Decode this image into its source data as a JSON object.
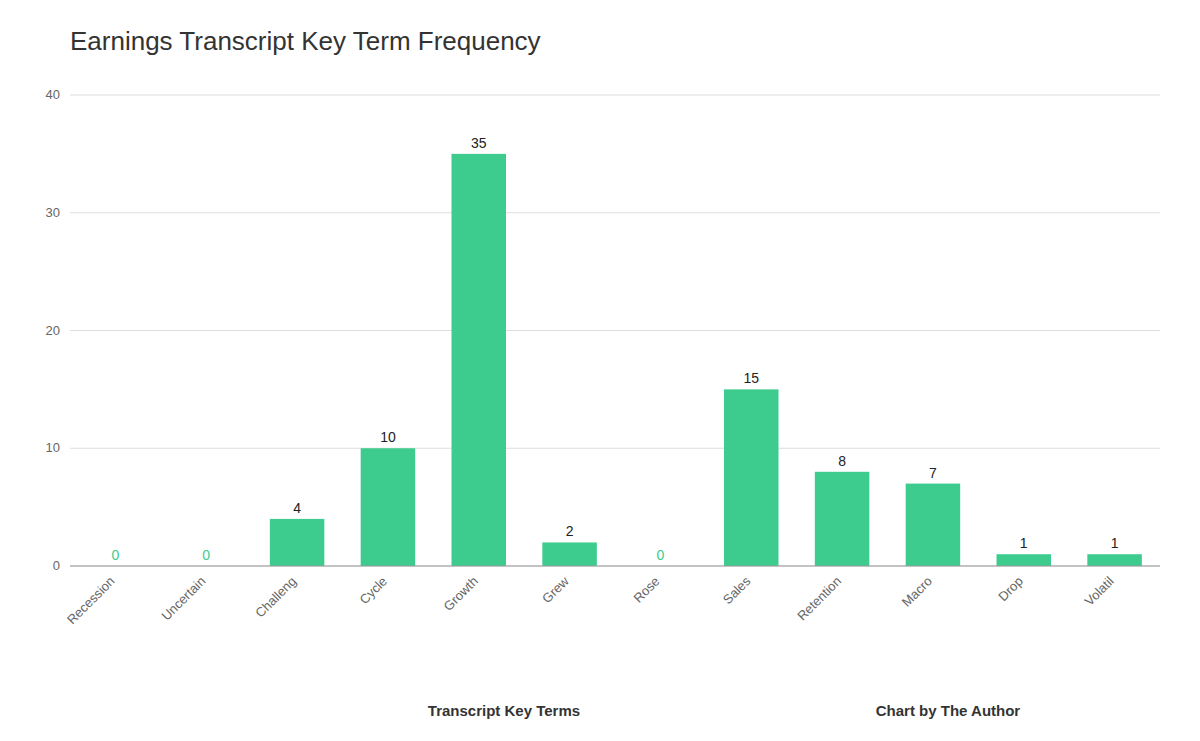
{
  "chart_data": {
    "type": "bar",
    "title": "Earnings Transcript Key Term Frequency",
    "xlabel": "Transcript Key Terms",
    "annotations": [
      "Chart by The Author"
    ],
    "categories": [
      "Recession",
      "Uncertain",
      "Challeng",
      "Cycle",
      "Growth",
      "Grew",
      "Rose",
      "Sales",
      "Retention",
      "Macro",
      "Drop",
      "Volatil"
    ],
    "values": [
      0,
      0,
      4,
      10,
      35,
      2,
      0,
      15,
      8,
      7,
      1,
      1
    ],
    "color": "#3dcc8e",
    "ylim": [
      0,
      40
    ],
    "yticks": [
      0,
      10,
      20,
      30,
      40
    ],
    "grid": true,
    "data_labels": true
  }
}
